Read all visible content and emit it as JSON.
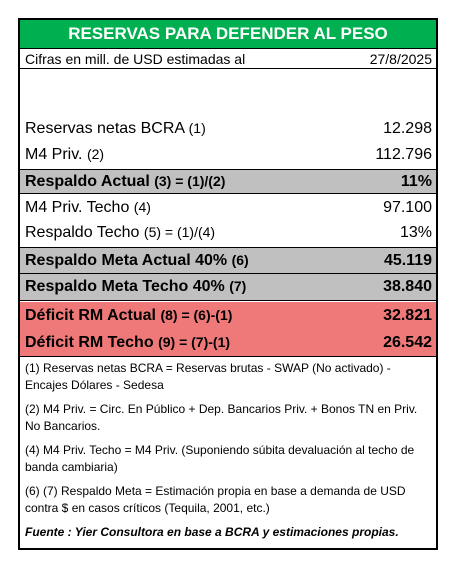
{
  "title": "RESERVAS PARA DEFENDER AL PESO",
  "subtitle": {
    "label": "Cifras en mill. de USD estimadas al",
    "date": "27/8/2025"
  },
  "rows": [
    {
      "label": "Reservas netas BCRA",
      "ref": "(1)",
      "value": "12.298"
    },
    {
      "label": "M4 Priv.",
      "ref": "(2)",
      "value": "112.796"
    },
    {
      "label": "Respaldo Actual",
      "ref": "(3) = (1)/(2)",
      "value": "11%"
    },
    {
      "label": "M4 Priv. Techo",
      "ref": "(4)",
      "value": "97.100"
    },
    {
      "label": "Respaldo Techo",
      "ref": "(5) = (1)/(4)",
      "value": "13%"
    },
    {
      "label": "Respaldo Meta Actual 40%",
      "ref": "(6)",
      "value": "45.119"
    },
    {
      "label": "Respaldo Meta Techo 40%",
      "ref": "(7)",
      "value": "38.840"
    },
    {
      "label": "Déficit RM Actual",
      "ref": "(8) = (6)-(1)",
      "value": "32.821"
    },
    {
      "label": "Déficit RM Techo",
      "ref": "(9) = (7)-(1)",
      "value": "26.542"
    }
  ],
  "notes": [
    "(1) Reservas netas BCRA = Reservas brutas - SWAP (No activado) - Encajes Dólares - Sedesa",
    "(2) M4 Priv. = Circ. En Público + Dep. Bancarios Priv. + Bonos TN en Priv. No Bancarios.",
    "(4) M4 Priv. Techo = M4 Priv.  (Suponiendo súbita devaluación al techo de banda cambiaria)",
    "(6) (7) Respaldo Meta = Estimación propia en base a demanda de USD contra $ en casos críticos (Tequila, 2001, etc.)"
  ],
  "source": "Fuente : Yier Consultora en base a BCRA y estimaciones propias.",
  "colors": {
    "title_bg": "#00b050",
    "gray_bg": "#c0c0c0",
    "red_bg": "#ef7979"
  }
}
